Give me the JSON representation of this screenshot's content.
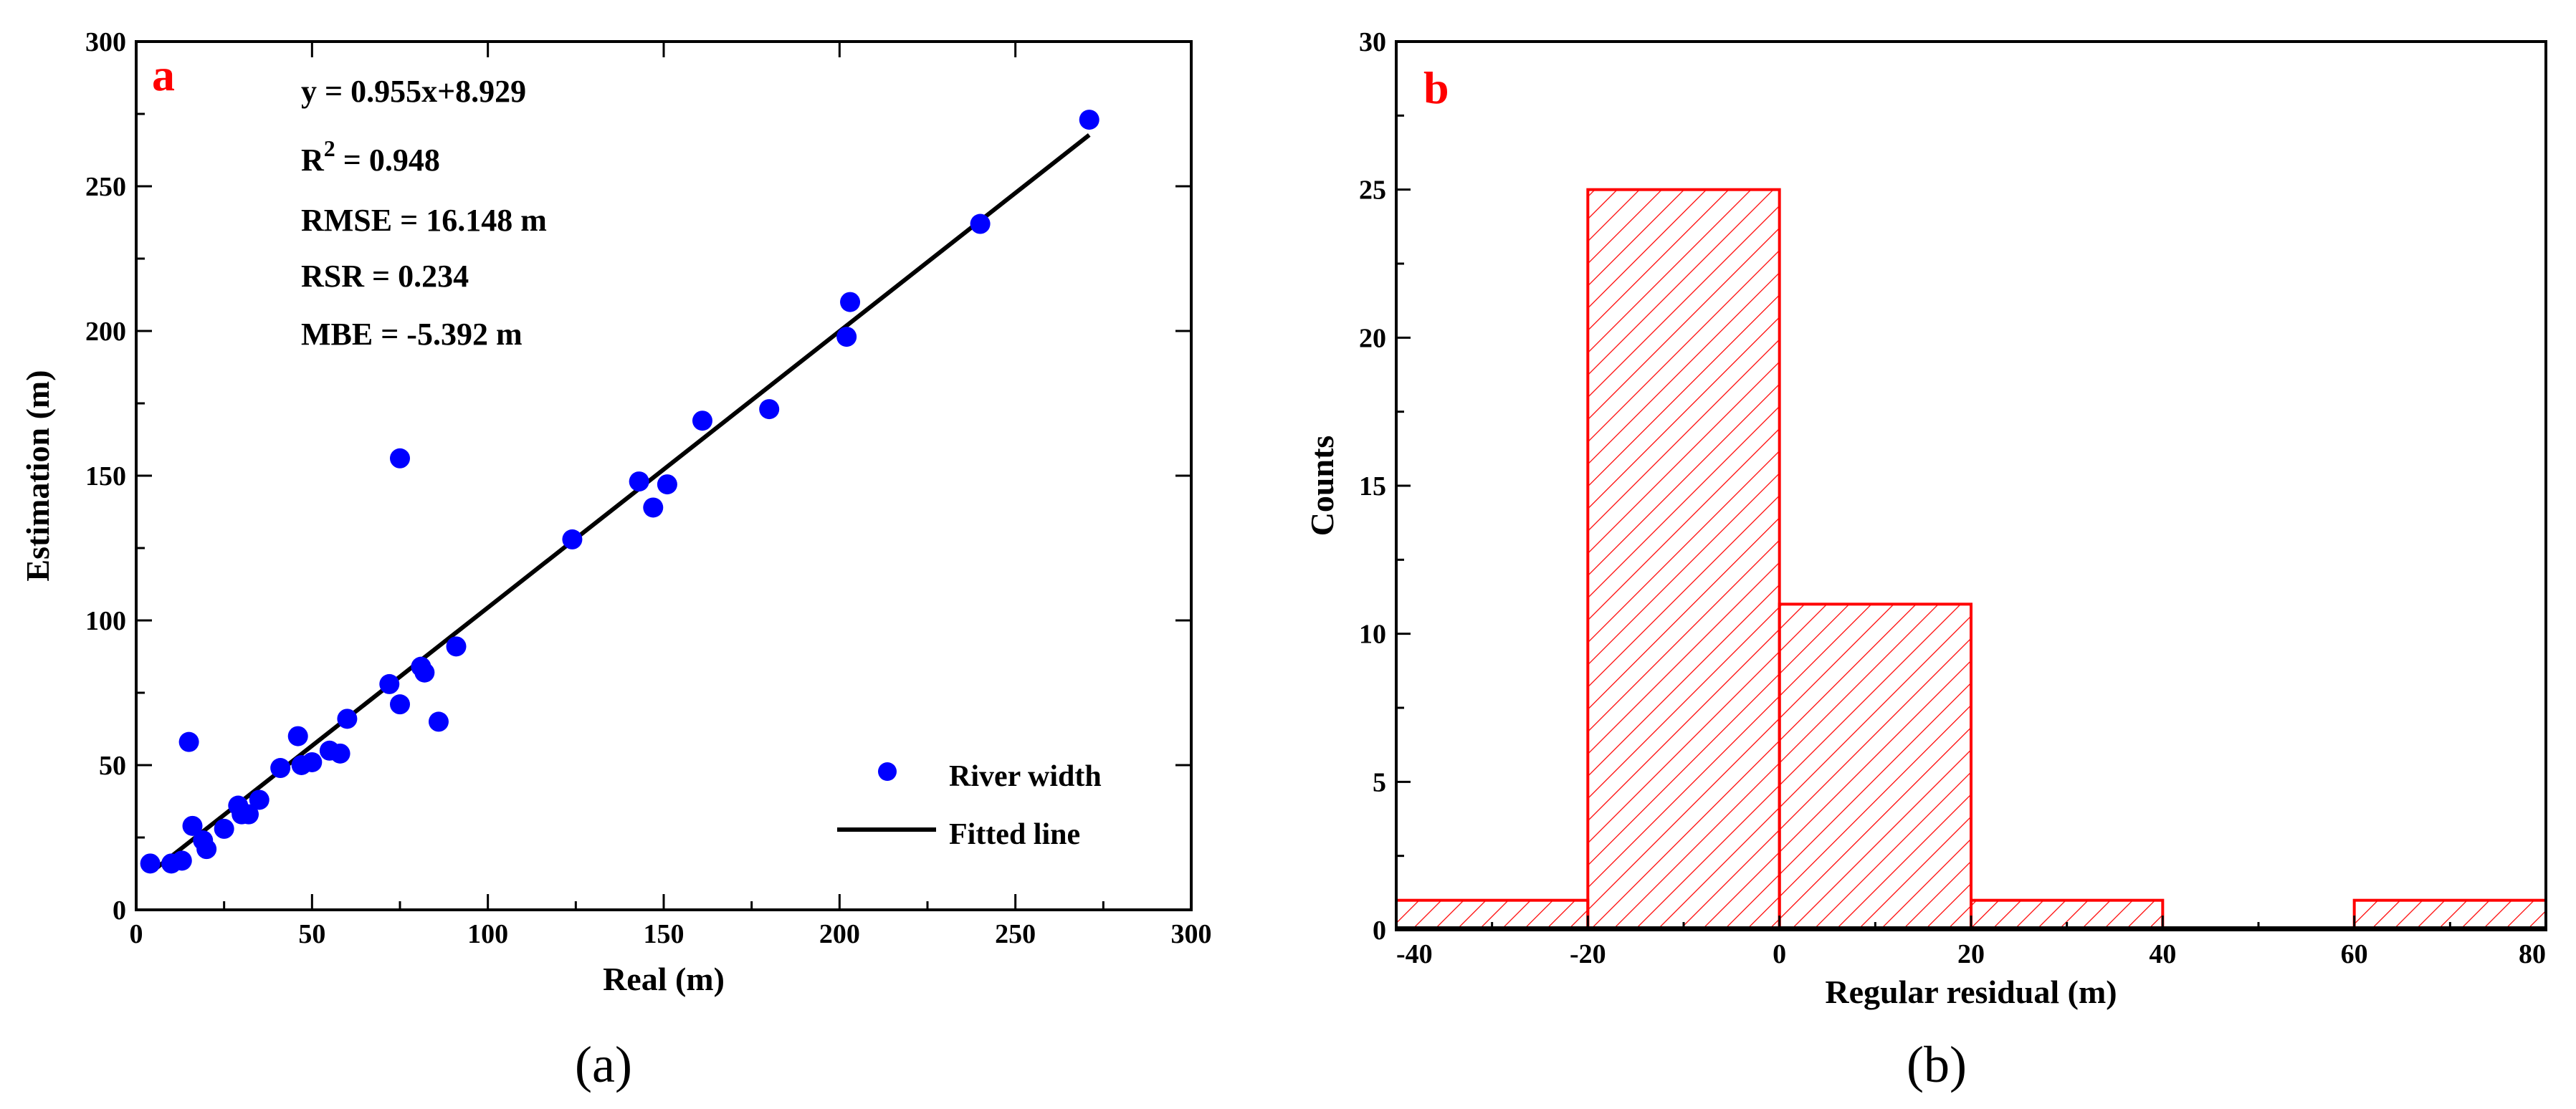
{
  "chart_data": [
    {
      "type": "scatter",
      "panel_label": "a",
      "xlabel": "Real (m)",
      "ylabel": "Estimation (m)",
      "xlim": [
        0,
        300
      ],
      "ylim": [
        0,
        300
      ],
      "xticks": [
        "0",
        "50",
        "100",
        "150",
        "200",
        "250",
        "300"
      ],
      "yticks": [
        "0",
        "50",
        "100",
        "150",
        "200",
        "250",
        "300"
      ],
      "stats": {
        "equation": "y = 0.955x+8.929",
        "r2_prefix": "R",
        "r2_sup": "2",
        "r2_value": " = 0.948",
        "rmse": "RMSE = 16.148 m",
        "rsr": "RSR = 0.234",
        "mbe": "MBE = -5.392 m"
      },
      "legend": {
        "position": "bottom-right",
        "entries": [
          "River width",
          "Fitted line"
        ]
      },
      "series": [
        {
          "name": "River width",
          "color": "#0000ff",
          "points": [
            [
              4,
              16
            ],
            [
              10,
              16
            ],
            [
              13,
              17
            ],
            [
              15,
              58
            ],
            [
              16,
              29
            ],
            [
              19,
              24
            ],
            [
              20,
              21
            ],
            [
              25,
              28
            ],
            [
              29,
              36
            ],
            [
              30,
              33
            ],
            [
              32,
              33
            ],
            [
              35,
              38
            ],
            [
              41,
              49
            ],
            [
              46,
              60
            ],
            [
              47,
              50
            ],
            [
              50,
              51
            ],
            [
              55,
              55
            ],
            [
              58,
              54
            ],
            [
              60,
              66
            ],
            [
              72,
              78
            ],
            [
              75,
              71
            ],
            [
              75,
              156
            ],
            [
              81,
              84
            ],
            [
              82,
              82
            ],
            [
              86,
              65
            ],
            [
              91,
              91
            ],
            [
              124,
              128
            ],
            [
              143,
              148
            ],
            [
              147,
              139
            ],
            [
              151,
              147
            ],
            [
              161,
              169
            ],
            [
              180,
              173
            ],
            [
              202,
              198
            ],
            [
              203,
              210
            ],
            [
              240,
              237
            ],
            [
              271,
              273
            ]
          ]
        },
        {
          "name": "Fitted line",
          "color": "#000000",
          "line": [
            [
              6,
              14.66
            ],
            [
              271,
              267.73
            ]
          ]
        }
      ]
    },
    {
      "type": "bar",
      "subtype": "histogram",
      "panel_label": "b",
      "xlabel": "Regular residual (m)",
      "ylabel": "Counts",
      "xlim": [
        -40,
        80
      ],
      "ylim": [
        0,
        30
      ],
      "xticks": [
        "-40",
        "-20",
        "0",
        "20",
        "40",
        "60",
        "80"
      ],
      "yticks": [
        "0",
        "5",
        "10",
        "15",
        "20",
        "25",
        "30"
      ],
      "bins": [
        {
          "from": -40,
          "to": -20,
          "count": 1
        },
        {
          "from": -20,
          "to": 0,
          "count": 25
        },
        {
          "from": 0,
          "to": 20,
          "count": 11
        },
        {
          "from": 20,
          "to": 40,
          "count": 1
        },
        {
          "from": 40,
          "to": 60,
          "count": 0
        },
        {
          "from": 60,
          "to": 80,
          "count": 1
        }
      ],
      "bar_color": "#ff0000"
    }
  ],
  "captions": [
    "(a)",
    "(b)"
  ]
}
